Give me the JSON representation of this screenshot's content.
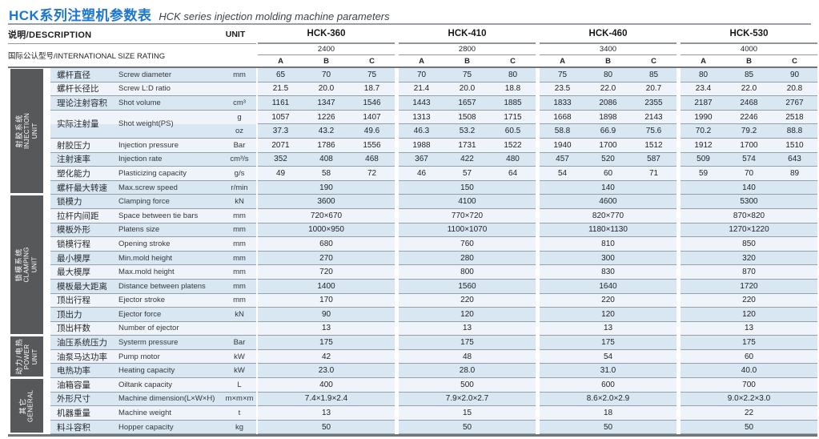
{
  "page": {
    "title_zh": "HCK系列注塑机参数表",
    "title_en": "HCK series injection molding machine parameters"
  },
  "colors": {
    "title_accent": "#1b76d1",
    "section_block": "#57585a",
    "stripe_blue": "#d9e7f3",
    "stripe_light": "#eef4f9"
  },
  "header": {
    "description_label": "说明/DESCRIPTION",
    "unit_label": "UNIT",
    "size_rating_label": "国际公认型号/INTERNATIONAL SIZE RATING",
    "subcolumns": [
      "A",
      "B",
      "C"
    ],
    "machines": [
      {
        "name": "HCK-360",
        "size_rating": "2400"
      },
      {
        "name": "HCK-410",
        "size_rating": "2800"
      },
      {
        "name": "HCK-460",
        "size_rating": "3400"
      },
      {
        "name": "HCK-530",
        "size_rating": "4000"
      }
    ]
  },
  "sections": [
    {
      "id": "injection",
      "label_zh": "射胶系统",
      "label_en": "INJECTION UNIT",
      "rows": [
        {
          "zh": "螺杆直径",
          "en": "Screw diameter",
          "unit": "mm",
          "values": [
            [
              "65",
              "70",
              "75"
            ],
            [
              "70",
              "75",
              "80"
            ],
            [
              "75",
              "80",
              "85"
            ],
            [
              "80",
              "85",
              "90"
            ]
          ]
        },
        {
          "zh": "螺杆长径比",
          "en": "Screw L:D ratio",
          "unit": "",
          "values": [
            [
              "21.5",
              "20.0",
              "18.7"
            ],
            [
              "21.4",
              "20.0",
              "18.8"
            ],
            [
              "23.5",
              "22.0",
              "20.7"
            ],
            [
              "23.4",
              "22.0",
              "20.8"
            ]
          ]
        },
        {
          "zh": "理论注射容积",
          "en": "Shot volume",
          "unit": "cm³",
          "values": [
            [
              "1161",
              "1347",
              "1546"
            ],
            [
              "1443",
              "1657",
              "1885"
            ],
            [
              "1833",
              "2086",
              "2355"
            ],
            [
              "2187",
              "2468",
              "2767"
            ]
          ]
        },
        {
          "dual": true,
          "zh": "实际注射量",
          "en": "Shot weight(PS)",
          "unit_top": "g",
          "unit_bottom": "oz",
          "values_top": [
            [
              "1057",
              "1226",
              "1407"
            ],
            [
              "1313",
              "1508",
              "1715"
            ],
            [
              "1668",
              "1898",
              "2143"
            ],
            [
              "1990",
              "2246",
              "2518"
            ]
          ],
          "values_bottom": [
            [
              "37.3",
              "43.2",
              "49.6"
            ],
            [
              "46.3",
              "53.2",
              "60.5"
            ],
            [
              "58.8",
              "66.9",
              "75.6"
            ],
            [
              "70.2",
              "79.2",
              "88.8"
            ]
          ]
        },
        {
          "zh": "射胶压力",
          "en": "Injection pressure",
          "unit": "Bar",
          "values": [
            [
              "2071",
              "1786",
              "1556"
            ],
            [
              "1988",
              "1731",
              "1522"
            ],
            [
              "1940",
              "1700",
              "1512"
            ],
            [
              "1912",
              "1700",
              "1510"
            ]
          ]
        },
        {
          "zh": "注射速率",
          "en": "Injection rate",
          "unit": "cm³/s",
          "values": [
            [
              "352",
              "408",
              "468"
            ],
            [
              "367",
              "422",
              "480"
            ],
            [
              "457",
              "520",
              "587"
            ],
            [
              "509",
              "574",
              "643"
            ]
          ]
        },
        {
          "zh": "塑化能力",
          "en": "Plasticizing capacity",
          "unit": "g/s",
          "values": [
            [
              "49",
              "58",
              "72"
            ],
            [
              "46",
              "57",
              "64"
            ],
            [
              "54",
              "60",
              "71"
            ],
            [
              "59",
              "70",
              "89"
            ]
          ]
        },
        {
          "zh": "螺杆最大转速",
          "en": "Max.screw speed",
          "unit": "r/min",
          "values": [
            "190",
            "150",
            "140",
            "140"
          ]
        }
      ]
    },
    {
      "id": "clamping",
      "label_zh": "锁模系统",
      "label_en": "CLAMPING UNIT",
      "rows": [
        {
          "zh": "锁模力",
          "en": "Clamping force",
          "unit": "kN",
          "values": [
            "3600",
            "4100",
            "4600",
            "5300"
          ]
        },
        {
          "zh": "拉杆内间距",
          "en": "Space between tie bars",
          "unit": "mm",
          "values": [
            "720×670",
            "770×720",
            "820×770",
            "870×820"
          ]
        },
        {
          "zh": "模板外形",
          "en": "Platens size",
          "unit": "mm",
          "values": [
            "1000×950",
            "1100×1070",
            "1180×1130",
            "1270×1220"
          ]
        },
        {
          "zh": "锁模行程",
          "en": "Opening stroke",
          "unit": "mm",
          "values": [
            "680",
            "760",
            "810",
            "850"
          ]
        },
        {
          "zh": "最小模厚",
          "en": "Min.mold height",
          "unit": "mm",
          "values": [
            "270",
            "280",
            "300",
            "320"
          ]
        },
        {
          "zh": "最大模厚",
          "en": "Max.mold height",
          "unit": "mm",
          "values": [
            "720",
            "800",
            "830",
            "870"
          ]
        },
        {
          "zh": "模板最大距离",
          "en": "Distance between platens",
          "unit": "mm",
          "values": [
            "1400",
            "1560",
            "1640",
            "1720"
          ]
        },
        {
          "zh": "顶出行程",
          "en": "Ejector stroke",
          "unit": "mm",
          "values": [
            "170",
            "220",
            "220",
            "220"
          ]
        },
        {
          "zh": "顶出力",
          "en": "Ejector force",
          "unit": "kN",
          "values": [
            "90",
            "120",
            "120",
            "120"
          ]
        },
        {
          "zh": "顶出杆数",
          "en": "Number of ejector",
          "unit": "",
          "values": [
            "13",
            "13",
            "13",
            "13"
          ]
        }
      ]
    },
    {
      "id": "power",
      "label_zh": "动力/电热",
      "label_en": "POWER UNIT",
      "rows": [
        {
          "zh": "油压系统压力",
          "en": "Systerm pressure",
          "unit": "Bar",
          "values": [
            "175",
            "175",
            "175",
            "175"
          ]
        },
        {
          "zh": "油泵马达功率",
          "en": "Pump motor",
          "unit": "kW",
          "values": [
            "42",
            "48",
            "54",
            "60"
          ]
        },
        {
          "zh": "电热功率",
          "en": "Heating capacity",
          "unit": "kW",
          "values": [
            "23.0",
            "28.0",
            "31.0",
            "40.0"
          ]
        }
      ]
    },
    {
      "id": "general",
      "label_zh": "其它",
      "label_en": "GENERAL",
      "rows": [
        {
          "zh": "油箱容量",
          "en": "Oiltank capacity",
          "unit": "L",
          "values": [
            "400",
            "500",
            "600",
            "700"
          ]
        },
        {
          "zh": "外形尺寸",
          "en": "Machine dimension(L×W×H)",
          "unit": "m×m×m",
          "values": [
            "7.4×1.9×2.4",
            "7.9×2.0×2.7",
            "8.6×2.0×2.9",
            "9.0×2.2×3.0"
          ]
        },
        {
          "zh": "机器重量",
          "en": "Machine weight",
          "unit": "t",
          "values": [
            "13",
            "15",
            "18",
            "22"
          ]
        },
        {
          "zh": "料斗容积",
          "en": "Hopper capacity",
          "unit": "kg",
          "values": [
            "50",
            "50",
            "50",
            "50"
          ]
        }
      ]
    }
  ]
}
